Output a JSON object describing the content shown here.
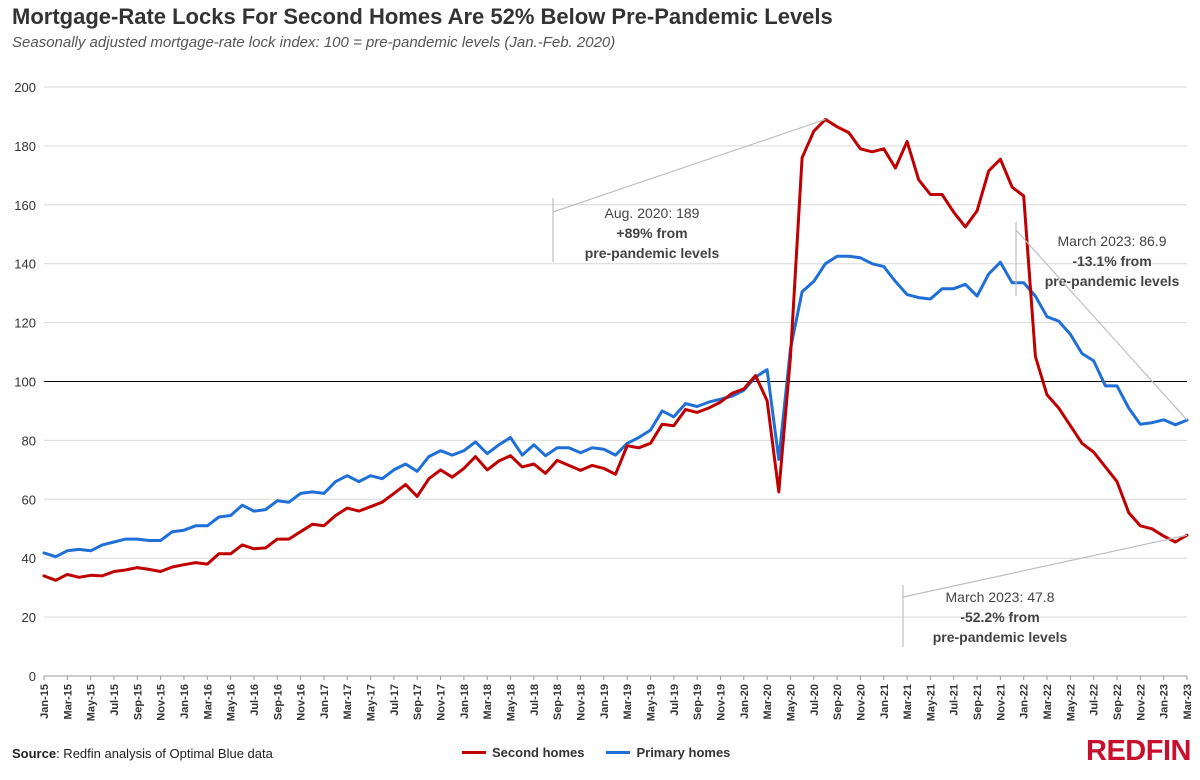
{
  "title": "Mortgage-Rate Locks For Second Homes Are 52% Below Pre-Pandemic Levels",
  "subtitle": "Seasonally adjusted mortgage-rate lock index: 100 = pre-pandemic levels (Jan.-Feb. 2020)",
  "source_label": "Source",
  "source_text": ": Redfin analysis of Optimal Blue data",
  "logo": "REDFIN",
  "colors": {
    "second": "#c00000",
    "primary": "#1f6fd6",
    "reference": "#000000",
    "grid": "#d9d9d9",
    "callout": "#bfbfbf",
    "brand": "#c8102e"
  },
  "chart_data": {
    "type": "line",
    "title": "Mortgage-Rate Locks For Second Homes Are 52% Below Pre-Pandemic Levels",
    "subtitle": "Seasonally adjusted mortgage-rate lock index: 100 = pre-pandemic levels (Jan.-Feb. 2020)",
    "xlabel": "",
    "ylabel": "",
    "ylim": [
      0,
      200
    ],
    "yticks": [
      0,
      20,
      40,
      60,
      80,
      100,
      120,
      140,
      160,
      180,
      200
    ],
    "grid": true,
    "legend_position": "bottom",
    "reference_line": 100,
    "x_start": "Jan-15",
    "x_end": "Mar-23",
    "xtick_labels": [
      "Jan-15",
      "Mar-15",
      "May-15",
      "Jul-15",
      "Sep-15",
      "Nov-15",
      "Jan-16",
      "Mar-16",
      "May-16",
      "Jul-16",
      "Sep-16",
      "Nov-16",
      "Jan-17",
      "Mar-17",
      "May-17",
      "Jul-17",
      "Sep-17",
      "Nov-17",
      "Jan-18",
      "Mar-18",
      "May-18",
      "Jul-18",
      "Sep-18",
      "Nov-18",
      "Jan-19",
      "Mar-19",
      "May-19",
      "Jul-19",
      "Sep-19",
      "Nov-19",
      "Jan-20",
      "Mar-20",
      "May-20",
      "Jul-20",
      "Sep-20",
      "Nov-20",
      "Jan-21",
      "Mar-21",
      "May-21",
      "Jul-21",
      "Sep-21",
      "Nov-21",
      "Jan-22",
      "Mar-22",
      "May-22",
      "Jul-22",
      "Sep-22",
      "Nov-22",
      "Jan-23",
      "Mar-23"
    ],
    "series": [
      {
        "name": "Second homes",
        "color": "#c00000",
        "values": [
          34,
          32.5,
          34.5,
          33.5,
          34.2,
          34,
          35.5,
          36,
          36.8,
          36.2,
          35.5,
          37,
          37.8,
          38.5,
          38,
          41.5,
          41.5,
          44.5,
          43.2,
          43.5,
          46.5,
          46.5,
          49,
          51.5,
          51,
          54.5,
          57,
          56,
          57.5,
          59,
          62,
          65,
          61,
          67,
          70,
          67.5,
          70.5,
          74.5,
          70,
          73,
          74.8,
          71,
          72,
          68.8,
          73.2,
          71.5,
          69.8,
          71.5,
          70.5,
          68.5,
          78.2,
          77.5,
          79,
          85.5,
          85,
          90.5,
          89.5,
          91,
          93,
          96,
          97.5,
          102,
          93.5,
          62.5,
          108,
          176,
          185,
          189,
          186.5,
          184.5,
          179,
          178,
          179,
          172.5,
          181.5,
          168.5,
          163.5,
          163.5,
          157.5,
          152.5,
          158,
          171.5,
          175.5,
          166,
          163,
          108.5,
          95.5,
          91,
          85,
          79,
          76,
          71,
          66,
          55.5,
          51,
          50,
          47.5,
          45.5,
          47.8
        ]
      },
      {
        "name": "Primary homes",
        "color": "#1f6fd6",
        "values": [
          41.8,
          40.5,
          42.5,
          43,
          42.5,
          44.5,
          45.5,
          46.5,
          46.5,
          46,
          46,
          49,
          49.5,
          51,
          51,
          54,
          54.5,
          58,
          56,
          56.5,
          59.5,
          59,
          62,
          62.5,
          62,
          66,
          68,
          66,
          68,
          67,
          70,
          72,
          69.5,
          74.5,
          76.5,
          75,
          76.5,
          79.5,
          75.5,
          78.5,
          81,
          75,
          78.5,
          74.8,
          77.5,
          77.5,
          75.8,
          77.5,
          77,
          75,
          79,
          81,
          83.5,
          90,
          88,
          92.5,
          91.5,
          93,
          94,
          95,
          97,
          101.5,
          104,
          73.5,
          111,
          130.5,
          134,
          140,
          142.5,
          142.5,
          142,
          140,
          139,
          134,
          129.5,
          128.5,
          128,
          131.5,
          131.5,
          133,
          129,
          136.5,
          140.5,
          133.5,
          133.5,
          129,
          122,
          120.5,
          116,
          109.5,
          107,
          98.5,
          98.5,
          91,
          85.5,
          86,
          87,
          85.3,
          86.9
        ]
      }
    ],
    "annotations": [
      {
        "label": "Aug. 2020: 189",
        "detail": "+89% from pre-pandemic levels",
        "detail_line1": "+89% from",
        "detail_line2": "pre-pandemic levels"
      },
      {
        "label": "March 2023: 86.9",
        "detail": "-13.1% from pre-pandemic levels",
        "detail_line1": "-13.1% from",
        "detail_line2": "pre-pandemic levels"
      },
      {
        "label": "March 2023: 47.8",
        "detail": "-52.2% from pre-pandemic levels",
        "detail_line1": "-52.2% from",
        "detail_line2": "pre-pandemic levels"
      }
    ]
  }
}
